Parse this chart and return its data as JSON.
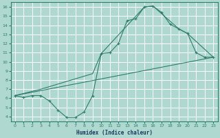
{
  "xlabel": "Humidex (Indice chaleur)",
  "bg_color": "#aed8d0",
  "grid_color": "#ffffff",
  "line_color": "#2e7d6b",
  "xlim": [
    -0.5,
    23.5
  ],
  "ylim": [
    3.5,
    16.5
  ],
  "xticks": [
    0,
    1,
    2,
    3,
    4,
    5,
    6,
    7,
    8,
    9,
    10,
    11,
    12,
    13,
    14,
    15,
    16,
    17,
    18,
    19,
    20,
    21,
    22,
    23
  ],
  "yticks": [
    4,
    5,
    6,
    7,
    8,
    9,
    10,
    11,
    12,
    13,
    14,
    15,
    16
  ],
  "curve1_x": [
    0,
    1,
    2,
    3,
    4,
    5,
    6,
    7,
    8,
    9,
    10,
    11,
    12,
    13,
    14,
    15,
    16,
    17,
    18,
    19,
    20,
    21,
    22,
    23
  ],
  "curve1_y": [
    6.3,
    6.1,
    6.3,
    6.3,
    5.7,
    4.7,
    3.9,
    3.9,
    4.5,
    6.3,
    10.9,
    11.0,
    12.0,
    14.5,
    14.7,
    16.0,
    16.1,
    15.4,
    14.1,
    13.6,
    13.1,
    11.0,
    10.5,
    10.5
  ],
  "curve2_x": [
    0,
    3,
    9,
    10,
    15,
    16,
    19,
    20,
    23
  ],
  "curve2_y": [
    6.3,
    7.0,
    8.7,
    10.9,
    16.0,
    16.1,
    13.6,
    13.1,
    10.5
  ],
  "curve3_x": [
    0,
    23
  ],
  "curve3_y": [
    6.3,
    10.5
  ]
}
